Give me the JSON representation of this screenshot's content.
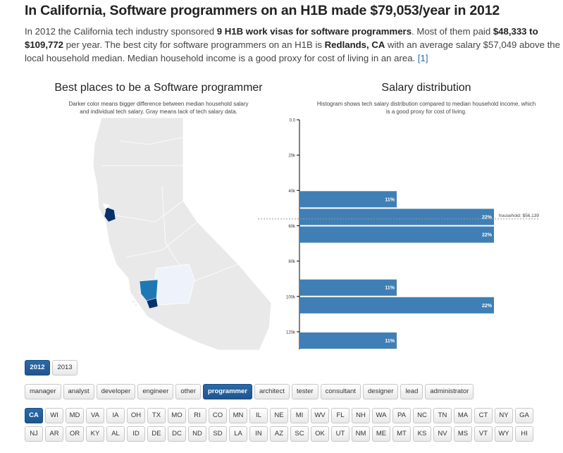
{
  "header": {
    "title": "In California, Software programmers on an H1B made $79,053/year in 2012",
    "intro": {
      "p1": "In 2012 the California tech industry sponsored ",
      "b1": "9 H1B work visas for software programmers",
      "p2": ". Most of them paid ",
      "b2": "$48,333 to $109,772",
      "p3": " per year. The best city for software programmers on an H1B is ",
      "b3": "Redlands, CA",
      "p4": " with an average salary $57,049 above the local household median. Median household income is a good proxy for cost of living in an area. ",
      "ref": "[1]"
    }
  },
  "map": {
    "title": "Best places to be a Software programmer",
    "subtitle1": "Darker color means bigger difference between median household salary",
    "subtitle2": "and individual tech salary. Gray means lack of tech salary data.",
    "colors": {
      "base": "#e9e9ea",
      "light": "#eef3fb",
      "mid": "#1f78b4",
      "dark": "#08306b"
    }
  },
  "chart": {
    "title": "Salary distribution",
    "subtitle1": "Histogram shows tech salary distribution compared to median household income, which",
    "subtitle2": "is a good proxy for cost of living."
  },
  "chart_data": {
    "type": "bar",
    "orientation": "horizontal",
    "title": "Salary distribution",
    "xlabel": "",
    "ylabel": "",
    "ylim": [
      0,
      130000
    ],
    "y_ticks": [
      0,
      20000,
      40000,
      60000,
      80000,
      100000,
      120000
    ],
    "y_tick_labels": [
      "0.0",
      "20k",
      "40k",
      "60k",
      "80k",
      "100k",
      "120k"
    ],
    "bins": [
      {
        "start": 40000,
        "end": 50000,
        "share": 11,
        "label": "11%"
      },
      {
        "start": 50000,
        "end": 60000,
        "share": 22,
        "label": "22%"
      },
      {
        "start": 60000,
        "end": 70000,
        "share": 22,
        "label": "22%"
      },
      {
        "start": 90000,
        "end": 100000,
        "share": 11,
        "label": "11%"
      },
      {
        "start": 100000,
        "end": 110000,
        "share": 22,
        "label": "22%"
      },
      {
        "start": 120000,
        "end": 130000,
        "share": 11,
        "label": "11%"
      }
    ],
    "reference_line": {
      "value": 56139,
      "label": "household: $56,139"
    },
    "bar_color": "#3f7fb5",
    "grid": false
  },
  "controls": {
    "years": [
      {
        "label": "2012",
        "active": true
      },
      {
        "label": "2013",
        "active": false
      }
    ],
    "jobs": [
      {
        "label": "manager",
        "active": false
      },
      {
        "label": "analyst",
        "active": false
      },
      {
        "label": "developer",
        "active": false
      },
      {
        "label": "engineer",
        "active": false
      },
      {
        "label": "other",
        "active": false
      },
      {
        "label": "programmer",
        "active": true
      },
      {
        "label": "architect",
        "active": false
      },
      {
        "label": "tester",
        "active": false
      },
      {
        "label": "consultant",
        "active": false
      },
      {
        "label": "designer",
        "active": false
      },
      {
        "label": "lead",
        "active": false
      },
      {
        "label": "administrator",
        "active": false
      }
    ],
    "states_row1": [
      "CA",
      "WI",
      "MD",
      "VA",
      "IA",
      "OH",
      "TX",
      "MO",
      "RI",
      "CO",
      "MN",
      "IL",
      "NE",
      "MI",
      "WV",
      "FL",
      "NH",
      "WA",
      "PA",
      "NC",
      "TN",
      "MA",
      "CT",
      "NY",
      "GA"
    ],
    "states_row2": [
      "NJ",
      "AR",
      "OR",
      "KY",
      "AL",
      "ID",
      "DE",
      "DC",
      "ND",
      "SD",
      "LA",
      "IN",
      "AZ",
      "SC",
      "OK",
      "UT",
      "NM",
      "ME",
      "MT",
      "KS",
      "NV",
      "MS",
      "VT",
      "WY",
      "HI"
    ],
    "active_state": "CA"
  }
}
